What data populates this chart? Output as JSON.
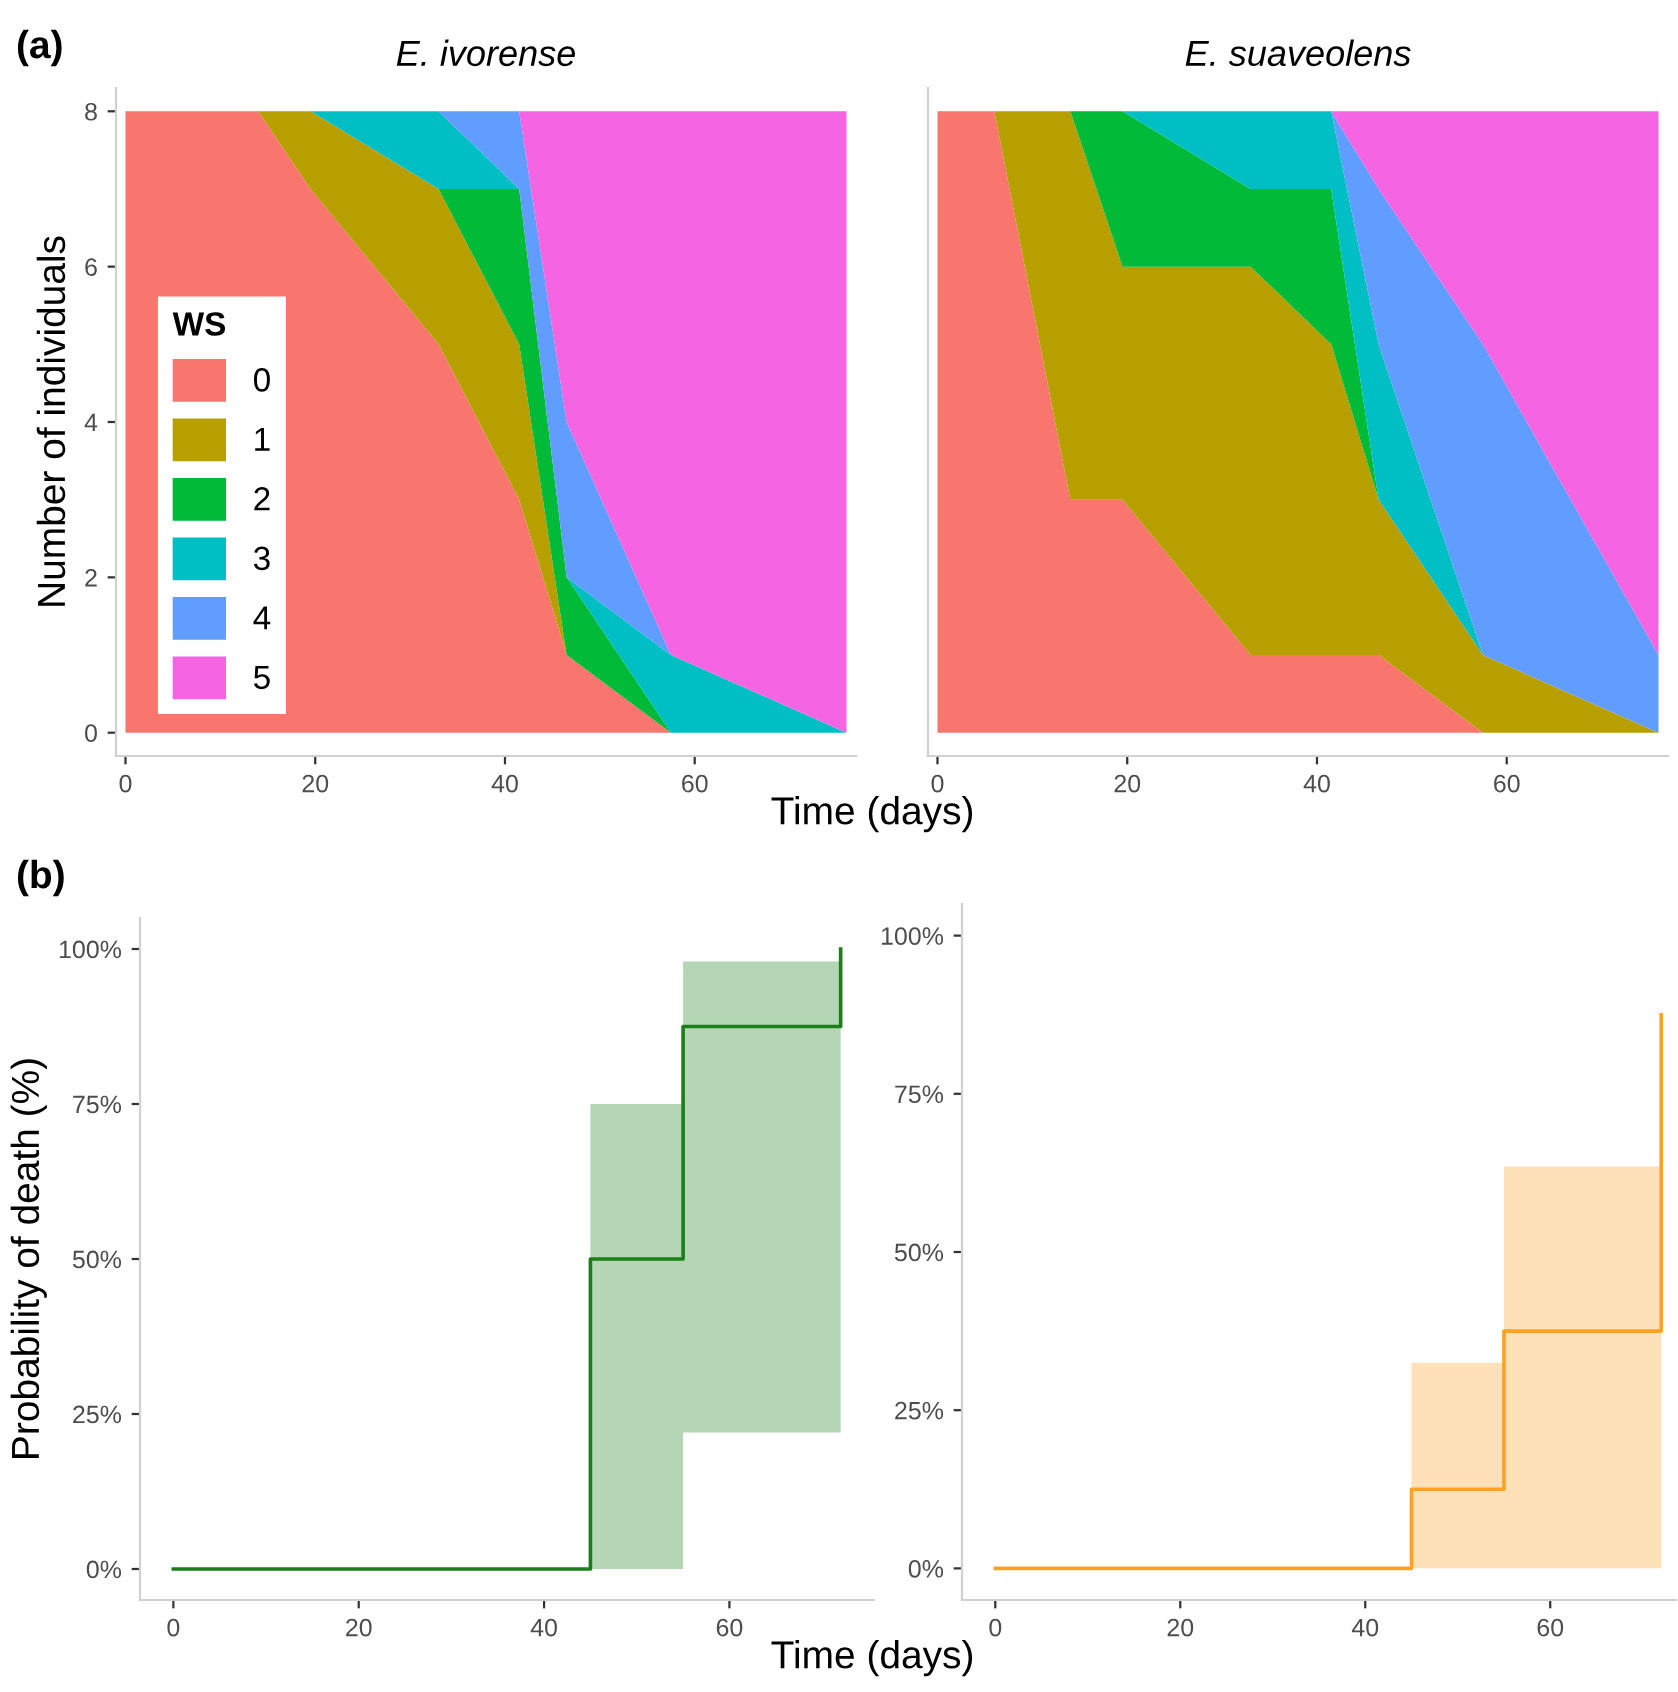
{
  "chart_data": [
    {
      "type": "area",
      "stacked": true,
      "title": "E. ivorense",
      "xlabel": "Time (days)",
      "ylabel": "Number of individuals",
      "legend_title": "WS",
      "legend": "bottom left",
      "annotations": [
        "(a)"
      ],
      "grid": false,
      "x": [
        0,
        6,
        14,
        19.5,
        33,
        41.5,
        46.5,
        57.5,
        76
      ],
      "xlim": [
        -1,
        77
      ],
      "xticks": [
        0,
        20,
        40,
        60
      ],
      "ylim": [
        -0.3,
        8.3
      ],
      "yticks": [
        0,
        2,
        4,
        6,
        8
      ],
      "series": [
        {
          "name": "0",
          "color": "#f8766d",
          "values": [
            8,
            8,
            8,
            7,
            5,
            3,
            1,
            0,
            null
          ]
        },
        {
          "name": "1",
          "color": "#b79f00",
          "values": [
            null,
            null,
            0,
            1,
            2,
            2,
            0,
            null,
            null
          ]
        },
        {
          "name": "2",
          "color": "#00ba38",
          "values": [
            null,
            null,
            null,
            null,
            0,
            2,
            1,
            0,
            null
          ]
        },
        {
          "name": "3",
          "color": "#00bfc4",
          "values": [
            null,
            null,
            null,
            0,
            1,
            0,
            0,
            1,
            0
          ]
        },
        {
          "name": "4",
          "color": "#619cff",
          "values": [
            null,
            null,
            null,
            null,
            0,
            1,
            2,
            0,
            null
          ]
        },
        {
          "name": "5",
          "color": "#f564e3",
          "values": [
            null,
            null,
            null,
            null,
            null,
            0,
            4,
            7,
            8
          ]
        }
      ]
    },
    {
      "type": "area",
      "stacked": true,
      "title": "E. suaveolens",
      "tick_labels": "x",
      "grid": false,
      "x": [
        0,
        6,
        14,
        19.5,
        33,
        41.5,
        46.5,
        57.5,
        76
      ],
      "xlim": [
        -1,
        77
      ],
      "xticks": [
        0,
        20,
        40,
        60
      ],
      "ylim": [
        -0.3,
        8.3
      ],
      "yticks": [
        0,
        2,
        4,
        6,
        8
      ],
      "series": [
        {
          "color": "#f8766d",
          "values": [
            8,
            8,
            3,
            3,
            1,
            1,
            1,
            0,
            null
          ]
        },
        {
          "color": "#b79f00",
          "values": [
            null,
            0,
            5,
            3,
            5,
            4,
            2,
            1,
            0
          ]
        },
        {
          "color": "#00ba38",
          "values": [
            null,
            null,
            0,
            2,
            1,
            2,
            0,
            null,
            null
          ]
        },
        {
          "color": "#00bfc4",
          "values": [
            null,
            null,
            null,
            0,
            1,
            1,
            2,
            0,
            null
          ]
        },
        {
          "color": "#619cff",
          "values": [
            null,
            null,
            null,
            null,
            null,
            0,
            2,
            4,
            1
          ]
        },
        {
          "color": "#f564e3",
          "values": [
            null,
            null,
            null,
            null,
            null,
            0,
            1,
            3,
            7
          ]
        }
      ]
    },
    {
      "type": "step",
      "xlabel": "Time (days)",
      "ylabel": "Probability of death (%)",
      "annotations": [
        "(b)"
      ],
      "grid": false,
      "xlim": [
        -3.6,
        75.6
      ],
      "xticks": [
        0,
        20,
        40,
        60
      ],
      "ylim": [
        -5,
        105
      ],
      "yticks": [
        {
          "value": 0,
          "label": "0%"
        },
        {
          "value": 25,
          "label": "25%"
        },
        {
          "value": 50,
          "label": "50%"
        },
        {
          "value": 75,
          "label": "75%"
        },
        {
          "value": 100,
          "label": "100%"
        }
      ],
      "series": [
        {
          "color": "#1a7f1a",
          "x": [
            0,
            45,
            55,
            72
          ],
          "values": [
            0,
            50,
            87.5,
            100
          ],
          "lower": [
            0,
            0,
            22,
            22
          ],
          "upper": [
            0,
            75,
            98,
            98
          ]
        }
      ]
    },
    {
      "type": "step",
      "grid": false,
      "xlim": [
        -3.6,
        73.6
      ],
      "xticks": [
        0,
        20,
        40,
        60
      ],
      "ylim": [
        -5,
        105
      ],
      "yticks": [
        {
          "value": 0,
          "label": "0%"
        },
        {
          "value": 25,
          "label": "25%"
        },
        {
          "value": 50,
          "label": "50%"
        },
        {
          "value": 75,
          "label": "75%"
        },
        {
          "value": 100,
          "label": "100%"
        }
      ],
      "series": [
        {
          "color": "#ffa126",
          "x": [
            0,
            45,
            55,
            72
          ],
          "values": [
            0,
            12.5,
            37.5,
            87.5
          ],
          "lower": [
            0,
            0,
            0,
            0
          ],
          "upper": [
            0,
            32.5,
            63.5,
            63.5
          ]
        }
      ]
    }
  ]
}
